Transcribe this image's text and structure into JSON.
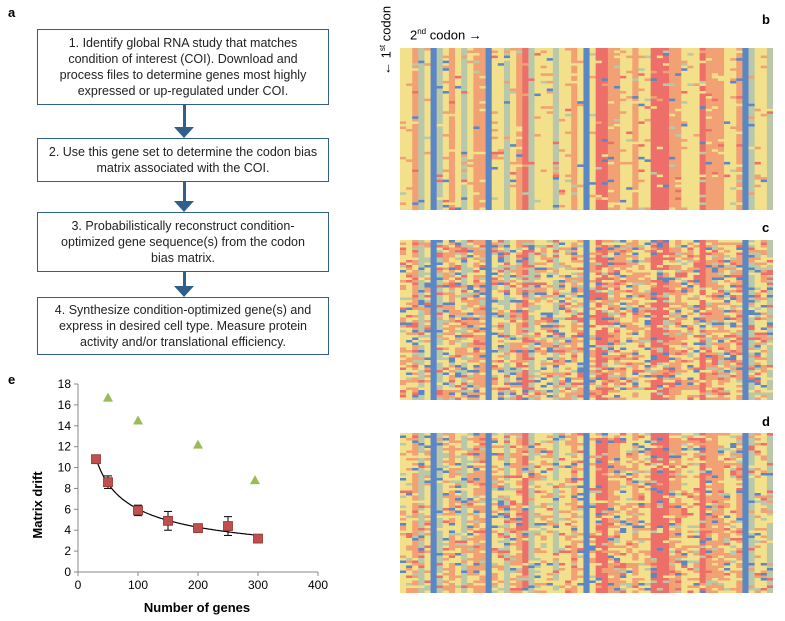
{
  "panels": {
    "a": "a",
    "b": "b",
    "c": "c",
    "d": "d",
    "e": "e"
  },
  "steps": [
    "1.  Identify global RNA study that matches condition of interest (COI). Download and process files to determine genes most highly expressed or up-regulated under COI.",
    "2.  Use this gene set to determine the codon bias matrix associated with the COI.",
    "3.  Probabilistically reconstruct condition-optimized gene sequence(s) from the codon bias matrix.",
    "4.  Synthesize condition-optimized gene(s) and express in desired cell type. Measure protein activity and/or translational efficiency."
  ],
  "heatmap": {
    "second_codon_label_pre": "2",
    "second_codon_sup": "nd",
    "second_codon_label_post": " codon →",
    "first_codon_label_pre": "← 1",
    "first_codon_sup": "st",
    "first_codon_label_post": " codon",
    "colors": {
      "blue": "#5b87c5",
      "grey": "#b8c8a8",
      "yellow": "#f3e08a",
      "orange": "#f1a173",
      "red": "#ee6f6a"
    }
  },
  "colors": {
    "step_border": "#2f5f8a",
    "marker_squares": "#c0504d",
    "marker_triangles": "#9bbb59",
    "fit_line": "#000000"
  },
  "chart_data": {
    "type": "scatter",
    "title": "",
    "xlabel": "Number of genes",
    "ylabel": "Matrix drift",
    "xlim": [
      0,
      400
    ],
    "ylim": [
      0,
      18
    ],
    "xticks": [
      0,
      100,
      200,
      300,
      400
    ],
    "yticks": [
      0,
      2,
      4,
      6,
      8,
      10,
      12,
      14,
      16,
      18
    ],
    "series": [
      {
        "name": "squares",
        "marker": "square",
        "x": [
          30,
          50,
          100,
          150,
          200,
          250,
          300
        ],
        "y": [
          10.8,
          8.6,
          5.9,
          4.9,
          4.2,
          4.4,
          3.2
        ],
        "err": [
          0.2,
          0.6,
          0.5,
          0.9,
          0.3,
          0.9,
          0.2
        ]
      },
      {
        "name": "triangles",
        "marker": "triangle",
        "x": [
          50,
          100,
          200,
          295
        ],
        "y": [
          16.7,
          14.5,
          12.2,
          8.8
        ]
      }
    ],
    "fit": {
      "type": "power",
      "x_from": 30,
      "x_to": 300
    }
  }
}
